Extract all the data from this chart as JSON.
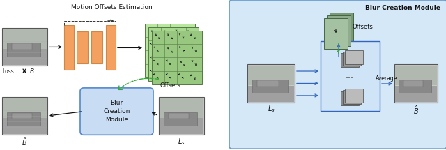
{
  "fig_width": 6.4,
  "fig_height": 2.15,
  "dpi": 100,
  "bg_color": "#ffffff",
  "enc_color": "#F4A060",
  "enc_edge": "#CC8844",
  "grid_fill": "#B8E8A0",
  "grid_edge": "#557744",
  "blur_module_fill": "#C8DCF4",
  "blur_module_edge": "#5588CC",
  "right_bg": "#D4E8F8",
  "right_edge": "#6699CC",
  "arrow_blue": "#3366BB",
  "arrow_green": "#33AA33",
  "frame_fill": "#AAAAAA",
  "frame_edge": "#444444",
  "offsets_fill_1": "#7A9977",
  "offsets_fill_2": "#8FAD8C",
  "offsets_fill_3": "#A4C1A1",
  "title_left": "Motion Offsets Estimation",
  "title_right": "Blur Creation Module",
  "label_loss": "Loss",
  "label_B": "B",
  "label_offsets_left": "Offsets",
  "label_offsets_right": "Offsets",
  "label_Ls_left": "$L_s$",
  "label_Ls_right": "$L_s$",
  "label_Bhat_left": "$\\tilde{B}$",
  "label_Bhat_right": "$\\hat{B}$",
  "label_average": "Average"
}
